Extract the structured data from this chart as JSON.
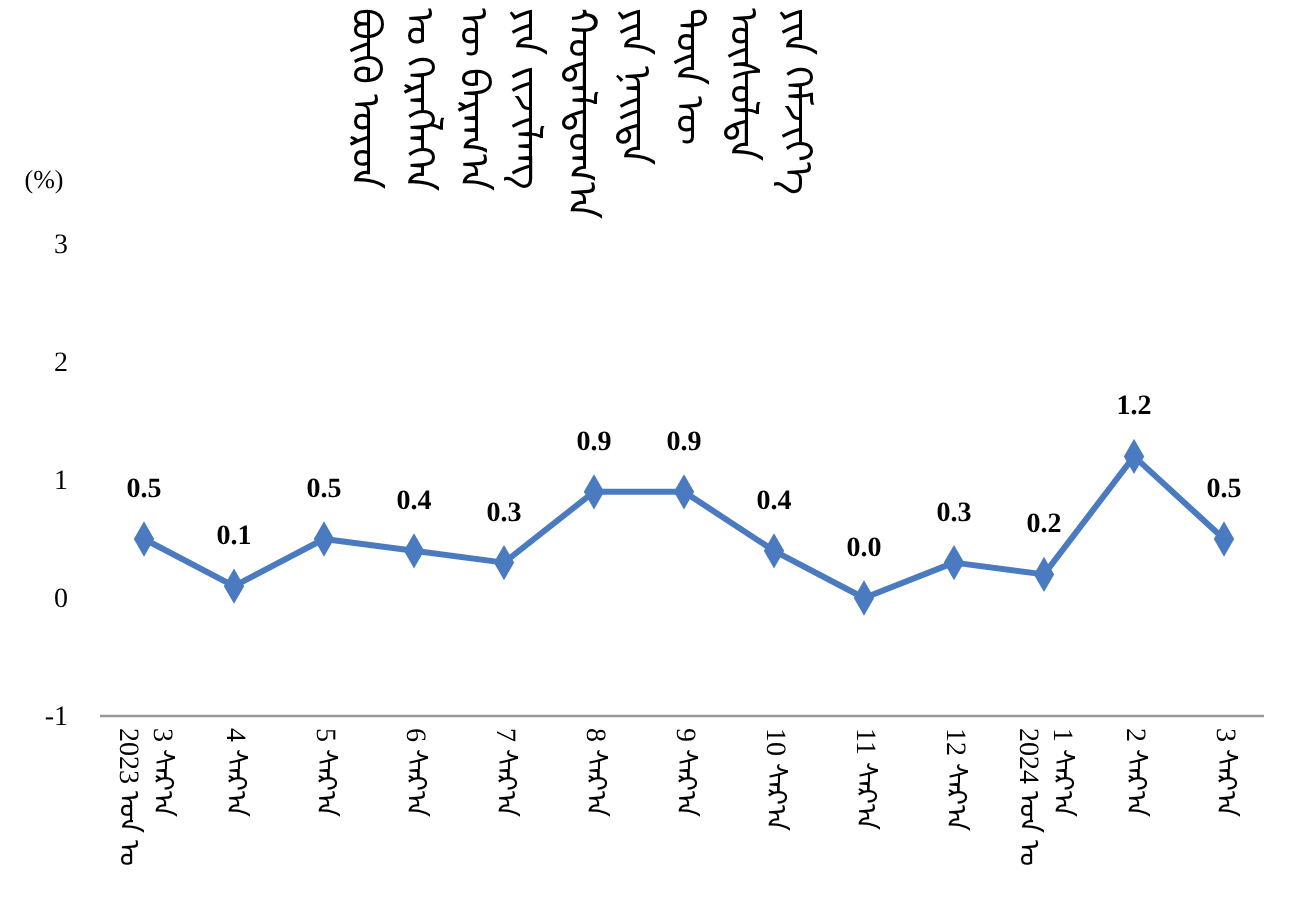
{
  "chart_data": {
    "type": "line",
    "title": "ᠪᠦᠬᠦ ᠣᠷᠣᠨ ᠤ ᠬᠡᠷᠡᠭᠯᠡᠭᠡᠨ ᠦ ᠪᠠᠷᠠᠭ᠎ᠠ ᠶᠢᠨ ᠵᠢᠵᠢᠯᠡᠩ ᠬᠤᠳᠠᠯᠳᠤᠭ᠎ᠠ ᠶᠢᠨ ᠨᠡᠢᠲᠡ ᠳᠦᠨ ᠦ ᠥᠰᠦᠯᠲᠡ ᠶᠢᠨ ᠬᠡᠮᠵᠢᠶ᠎ᠡ",
    "ylabel": "(%)",
    "categories": [
      "2023 ᠣᠨ ᠤ\n3 ᠰᠠᠷ᠎ᠠ",
      "4 ᠰᠠᠷ᠎ᠠ",
      "5 ᠰᠠᠷ᠎ᠠ",
      "6 ᠰᠠᠷ᠎ᠠ",
      "7 ᠰᠠᠷ᠎ᠠ",
      "8 ᠰᠠᠷ᠎ᠠ",
      "9 ᠰᠠᠷ᠎ᠠ",
      "10 ᠰᠠᠷ᠎ᠠ",
      "11 ᠰᠠᠷ᠎ᠠ",
      "12 ᠰᠠᠷ᠎ᠠ",
      "2024 ᠣᠨ ᠤ\n1 ᠰᠠᠷ᠎ᠠ",
      "2 ᠰᠠᠷ᠎ᠠ",
      "3 ᠰᠠᠷ᠎ᠠ"
    ],
    "series": [
      {
        "color": "#4a7bc0",
        "values": [
          0.5,
          0.1,
          0.5,
          0.4,
          0.3,
          0.9,
          0.9,
          0.4,
          0.0,
          0.3,
          0.2,
          1.2,
          0.5
        ],
        "value_labels": [
          "0.5",
          "0.1",
          "0.5",
          "0.4",
          "0.3",
          "0.9",
          "0.9",
          "0.4",
          "0.0",
          "0.3",
          "0.2",
          "1.2",
          "0.5"
        ]
      }
    ],
    "ylim": [
      -1,
      3
    ],
    "yticks": [
      -1,
      0,
      1,
      2,
      3
    ],
    "marker": "diamond",
    "line_style": "solid",
    "grid": false
  }
}
